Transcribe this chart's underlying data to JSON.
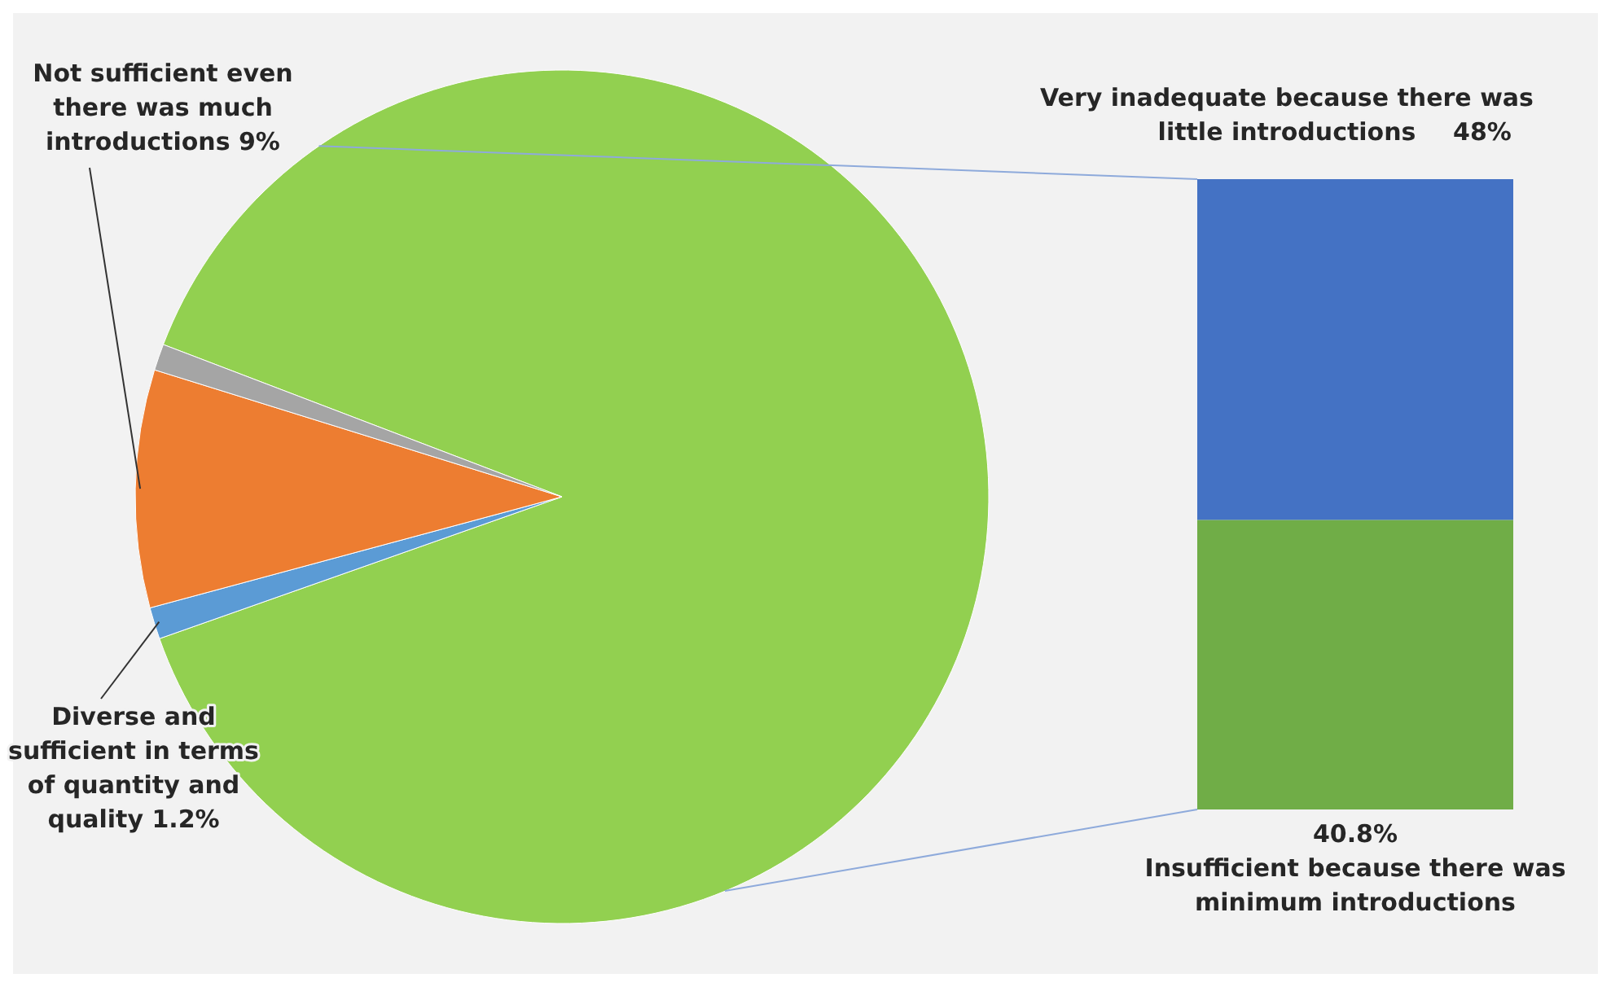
{
  "chart_data": [
    {
      "type": "pie",
      "categories": [
        null,
        "Diverse and sufficient in terms of quantity and quality",
        "Not sufficient even there was much introductions",
        null
      ],
      "values": [
        88.8,
        1.2,
        9,
        1
      ],
      "colors": [
        "#92d050",
        "#5b9bd5",
        "#ed7d31",
        "#a5a5a5"
      ],
      "value_labels": [
        null,
        "1.2%",
        "9%",
        null
      ]
    },
    {
      "type": "bar",
      "stacked": true,
      "categories": [
        null
      ],
      "series": [
        {
          "name": "Insufficient because there was minimum introductions",
          "color": "#70ad47",
          "values": [
            40.8
          ],
          "value_labels": [
            "40.8%"
          ]
        },
        {
          "name": "Very inadequate because there was little introductions",
          "color": "#4472c4",
          "values": [
            48
          ],
          "value_labels": [
            "48%"
          ]
        }
      ]
    }
  ]
}
